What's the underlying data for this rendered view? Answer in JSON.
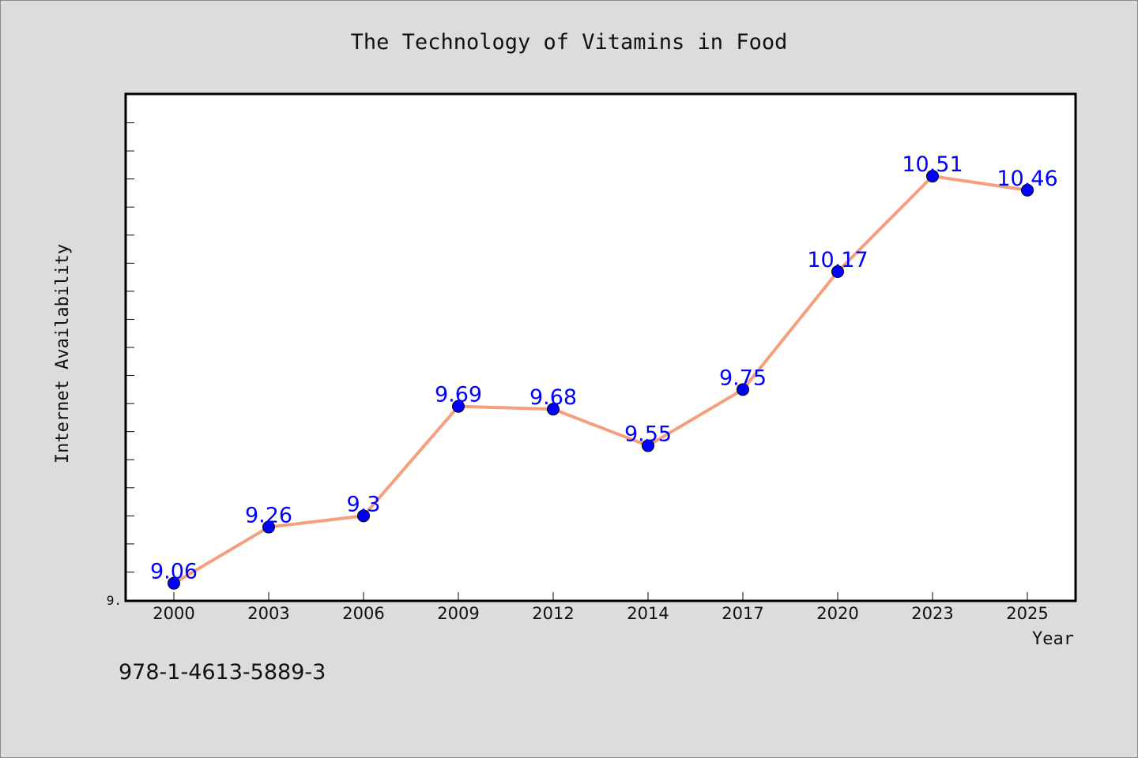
{
  "chart_data": {
    "type": "line",
    "title": "The Technology of Vitamins in Food",
    "xlabel": "Year",
    "ylabel": "Internet Availability",
    "categories": [
      "2000",
      "2003",
      "2006",
      "2009",
      "2012",
      "2014",
      "2017",
      "2020",
      "2023",
      "2025"
    ],
    "series": [
      {
        "values": [
          9.06,
          9.26,
          9.3,
          9.69,
          9.68,
          9.55,
          9.75,
          10.17,
          10.51,
          10.46
        ]
      }
    ],
    "data_labels": [
      "9.06",
      "9.26",
      "9.3",
      "9.69",
      "9.68",
      "9.55",
      "9.75",
      "10.17",
      "10.51",
      "10.46"
    ],
    "y_tick_labels": [
      "9."
    ],
    "ylim": [
      9.0,
      10.8
    ],
    "y_minor_tick_step": 0.1,
    "grid": false,
    "colors": {
      "line": "#f4a07f",
      "marker": "#0000ff",
      "data_label": "#0000ff",
      "plot_background": "#ffffff",
      "page_background": "#dcdcdc"
    }
  },
  "footer": {
    "isbn": "978-1-4613-5889-3"
  }
}
